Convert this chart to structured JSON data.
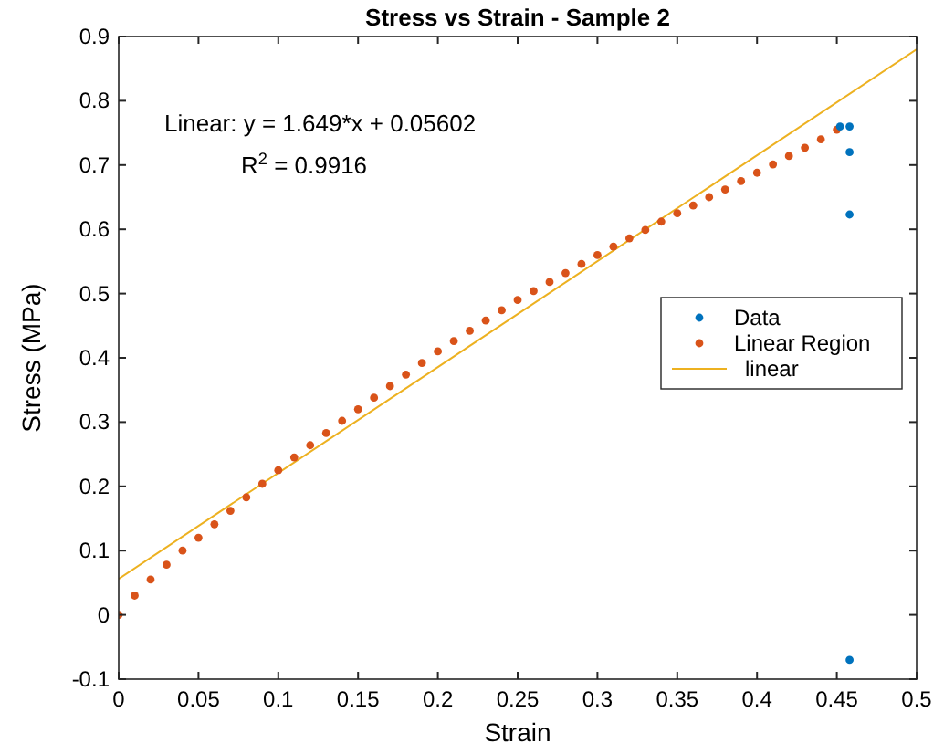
{
  "chart_data": {
    "type": "scatter",
    "title": "Stress vs Strain - Sample 2",
    "xlabel": "Strain",
    "ylabel": "Stress (MPa)",
    "xlim": [
      0,
      0.5
    ],
    "ylim": [
      -0.1,
      0.9
    ],
    "xticks": [
      0,
      0.05,
      0.1,
      0.15,
      0.2,
      0.25,
      0.3,
      0.35,
      0.4,
      0.45,
      0.5
    ],
    "yticks": [
      -0.1,
      0,
      0.1,
      0.2,
      0.3,
      0.4,
      0.5,
      0.6,
      0.7,
      0.8,
      0.9
    ],
    "grid": false,
    "legend": "right",
    "annotations": [
      "Linear:  y = 1.649*x + 0.05602",
      "R$^{2}$ = 0.9916"
    ],
    "series": [
      {
        "name": "Data",
        "color": "#0072bd",
        "marker": "circle",
        "x": [
          0.452,
          0.458,
          0.458,
          0.458,
          0.458
        ],
        "values": [
          0.76,
          0.76,
          0.72,
          0.623,
          -0.07
        ]
      },
      {
        "name": "Linear Region",
        "color": "#d95319",
        "marker": "circle",
        "x": [
          0,
          0.01,
          0.02,
          0.03,
          0.04,
          0.05,
          0.06,
          0.07,
          0.08,
          0.09,
          0.1,
          0.11,
          0.12,
          0.13,
          0.14,
          0.15,
          0.16,
          0.17,
          0.18,
          0.19,
          0.2,
          0.21,
          0.22,
          0.23,
          0.24,
          0.25,
          0.26,
          0.27,
          0.28,
          0.29,
          0.3,
          0.31,
          0.32,
          0.33,
          0.34,
          0.35,
          0.36,
          0.37,
          0.38,
          0.39,
          0.4,
          0.41,
          0.42,
          0.43,
          0.44,
          0.45
        ],
        "values": [
          0,
          0.03,
          0.055,
          0.078,
          0.1,
          0.12,
          0.141,
          0.162,
          0.183,
          0.204,
          0.225,
          0.245,
          0.264,
          0.283,
          0.302,
          0.32,
          0.338,
          0.356,
          0.374,
          0.392,
          0.41,
          0.426,
          0.442,
          0.458,
          0.474,
          0.49,
          0.504,
          0.518,
          0.532,
          0.546,
          0.56,
          0.573,
          0.586,
          0.599,
          0.612,
          0.625,
          0.637,
          0.65,
          0.662,
          0.675,
          0.688,
          0.701,
          0.714,
          0.727,
          0.74,
          0.755
        ]
      },
      {
        "name": "linear",
        "type": "line",
        "color": "#edb120",
        "x": [
          0,
          0.5
        ],
        "values": [
          0.056,
          0.88
        ]
      }
    ]
  }
}
